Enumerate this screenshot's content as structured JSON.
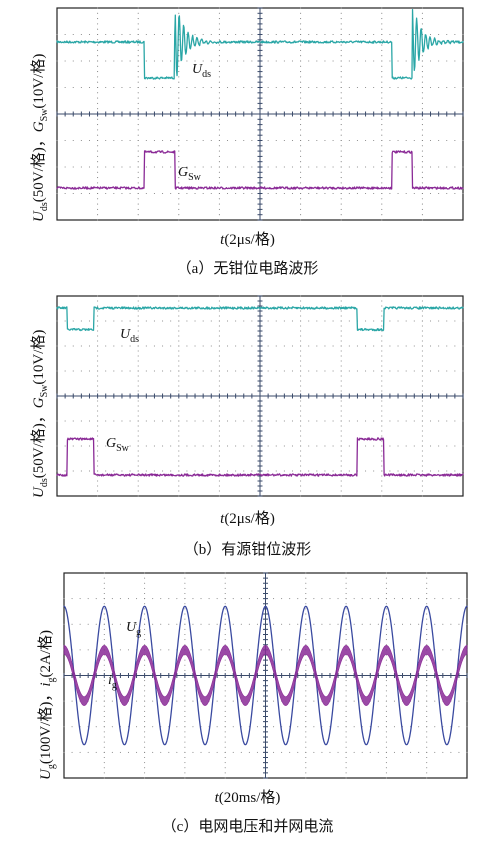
{
  "chart_data": [
    {
      "id": "a",
      "type": "line",
      "caption": "（a）无钳位电路波形",
      "xlabel": {
        "var": "t",
        "unit": "(2μs/格)"
      },
      "ylabel": {
        "var1": "U",
        "sub1": "ds",
        "unit1": "(50V/格)，",
        "var2": "G",
        "sub2": "Sw",
        "unit2": "(10V/格)"
      },
      "xlim": [
        0,
        20
      ],
      "x_unit": "μs",
      "grid": {
        "xdiv": 10,
        "ydiv": 8
      },
      "series": [
        {
          "name": "Uds",
          "label_var": "U",
          "label_sub": "ds",
          "color": "#2aa6a6",
          "ylim": [
            -80,
            120
          ],
          "points": [
            [
              0,
              0
            ],
            [
              4.3,
              0
            ],
            [
              4.3,
              -58
            ],
            [
              5.8,
              -58
            ],
            [
              5.8,
              0
            ],
            [
              20,
              0
            ]
          ],
          "ringing": [
            {
              "t": 5.8,
              "amp": 70,
              "period": 0.22,
              "decay": 0.45
            },
            {
              "t": 17.5,
              "amp": 60,
              "period": 0.22,
              "decay": 0.45
            }
          ],
          "second_pulse": [
            [
              16.5,
              0
            ],
            [
              16.5,
              -58
            ],
            [
              17.5,
              -58
            ],
            [
              17.5,
              0
            ]
          ]
        },
        {
          "name": "GSw",
          "label_var": "G",
          "label_sub": "Sw",
          "color": "#8a2a96",
          "ylim": [
            -5,
            25
          ],
          "points": [
            [
              0,
              0
            ],
            [
              4.3,
              0
            ],
            [
              4.3,
              15
            ],
            [
              5.8,
              15
            ],
            [
              5.8,
              0
            ],
            [
              16.5,
              0
            ],
            [
              16.5,
              15
            ],
            [
              17.5,
              15
            ],
            [
              17.5,
              0
            ],
            [
              20,
              0
            ]
          ]
        }
      ]
    },
    {
      "id": "b",
      "type": "line",
      "caption": "（b）有源钳位波形",
      "xlabel": {
        "var": "t",
        "unit": "(2μs/格)"
      },
      "ylabel": {
        "var1": "U",
        "sub1": "ds",
        "unit1": "(50V/格)，",
        "var2": "G",
        "sub2": "Sw",
        "unit2": "(10V/格)"
      },
      "xlim": [
        0,
        20
      ],
      "x_unit": "μs",
      "grid": {
        "xdiv": 10,
        "ydiv": 8
      },
      "series": [
        {
          "name": "Uds",
          "label_var": "U",
          "label_sub": "ds",
          "color": "#2aa6a6",
          "points": [
            [
              0,
              0
            ],
            [
              0.5,
              0
            ],
            [
              0.5,
              -45
            ],
            [
              1.8,
              -45
            ],
            [
              1.8,
              0
            ],
            [
              14.8,
              0
            ],
            [
              14.8,
              -45
            ],
            [
              16.1,
              -45
            ],
            [
              16.1,
              0
            ],
            [
              20,
              0
            ]
          ]
        },
        {
          "name": "GSw",
          "label_var": "G",
          "label_sub": "Sw",
          "color": "#8a2a96",
          "points": [
            [
              0,
              0
            ],
            [
              0.5,
              0
            ],
            [
              0.5,
              15
            ],
            [
              1.8,
              15
            ],
            [
              1.8,
              0
            ],
            [
              14.8,
              0
            ],
            [
              14.8,
              15
            ],
            [
              16.1,
              15
            ],
            [
              16.1,
              0
            ],
            [
              20,
              0
            ]
          ]
        }
      ]
    },
    {
      "id": "c",
      "type": "line",
      "caption": "（c）电网电压和并网电流",
      "xlabel": {
        "var": "t",
        "unit": "(20ms/格)"
      },
      "ylabel": {
        "var1": "U",
        "sub1": "g",
        "unit1": "(100V/格)，",
        "var2": "i",
        "sub2": "g",
        "unit2": "(2A/格)"
      },
      "xlim": [
        0,
        200
      ],
      "x_unit": "ms",
      "grid": {
        "xdiv": 10,
        "ydiv": 8
      },
      "series": [
        {
          "name": "Ug",
          "label_var": "U",
          "label_sub": "g",
          "color": "#3a4aa0",
          "amplitude_div": 2.7,
          "frequency_hz": 50,
          "phase_deg": 90
        },
        {
          "name": "ig",
          "label_var": "i",
          "label_sub": "g",
          "color": "#8a2a96",
          "amplitude_div": 1.0,
          "frequency_hz": 50,
          "phase_deg": 90,
          "ripple_div": 0.35
        }
      ]
    }
  ]
}
